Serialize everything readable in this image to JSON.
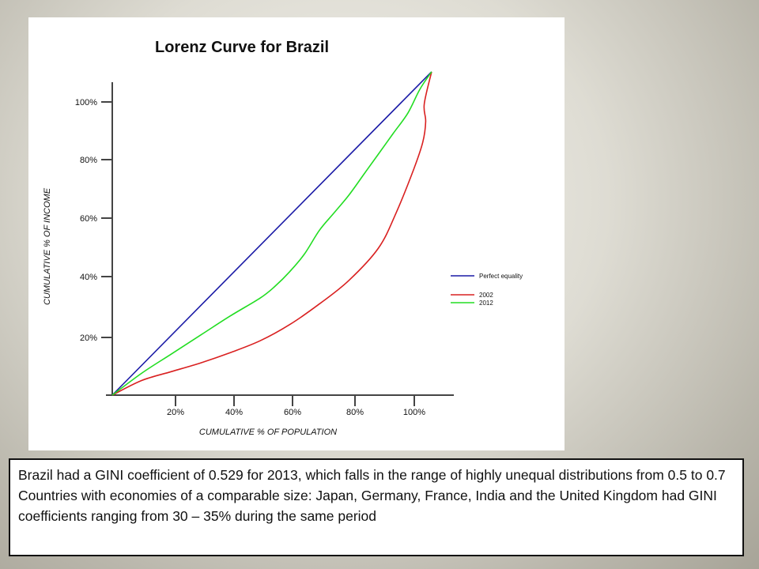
{
  "chart_data": {
    "type": "line",
    "title": "Lorenz Curve for Brazil",
    "xlabel": "CUMULATIVE % OF POPULATION",
    "ylabel": "CUMULATIVE % OF INCOME",
    "xlim": [
      0,
      110
    ],
    "ylim": [
      0,
      110
    ],
    "x_ticks": [
      "20%",
      "40%",
      "60%",
      "80%",
      "100%"
    ],
    "y_ticks": [
      "20%",
      "40%",
      "60%",
      "80%",
      "100%"
    ],
    "grid": false,
    "legend_position": "right",
    "series": [
      {
        "name": "Perfect equality",
        "color": "#1a1aa6",
        "points": [
          [
            0,
            0
          ],
          [
            108,
            110
          ]
        ]
      },
      {
        "name": "2002",
        "color": "#d92020",
        "points": [
          [
            0,
            0
          ],
          [
            10,
            5
          ],
          [
            20,
            8
          ],
          [
            30,
            11
          ],
          [
            40,
            14.5
          ],
          [
            50,
            18.5
          ],
          [
            60,
            24
          ],
          [
            70,
            31
          ],
          [
            80,
            39
          ],
          [
            90,
            50
          ],
          [
            96,
            62
          ],
          [
            102,
            77
          ],
          [
            105,
            86
          ],
          [
            106,
            93
          ],
          [
            105.5,
            99
          ],
          [
            108,
            110
          ]
        ]
      },
      {
        "name": "2012",
        "color": "#22dd22",
        "points": [
          [
            0,
            0
          ],
          [
            10,
            7.5
          ],
          [
            20,
            14
          ],
          [
            30,
            20.5
          ],
          [
            40,
            27
          ],
          [
            50,
            33
          ],
          [
            55,
            37
          ],
          [
            60,
            42
          ],
          [
            65,
            48
          ],
          [
            70,
            56
          ],
          [
            75,
            62
          ],
          [
            80,
            68
          ],
          [
            85,
            75
          ],
          [
            90,
            82
          ],
          [
            95,
            89
          ],
          [
            100,
            96
          ],
          [
            104,
            104
          ],
          [
            108,
            110
          ]
        ]
      }
    ]
  },
  "caption": {
    "line1": "Brazil had a GINI coefficient of 0.529 for 2013, which falls in the range of highly unequal distributions from 0.5 to 0.7",
    "line2": "Countries with economies of a comparable size: Japan, Germany, France, India and the United Kingdom had GINI coefficients ranging from 30 – 35% during the same period"
  }
}
